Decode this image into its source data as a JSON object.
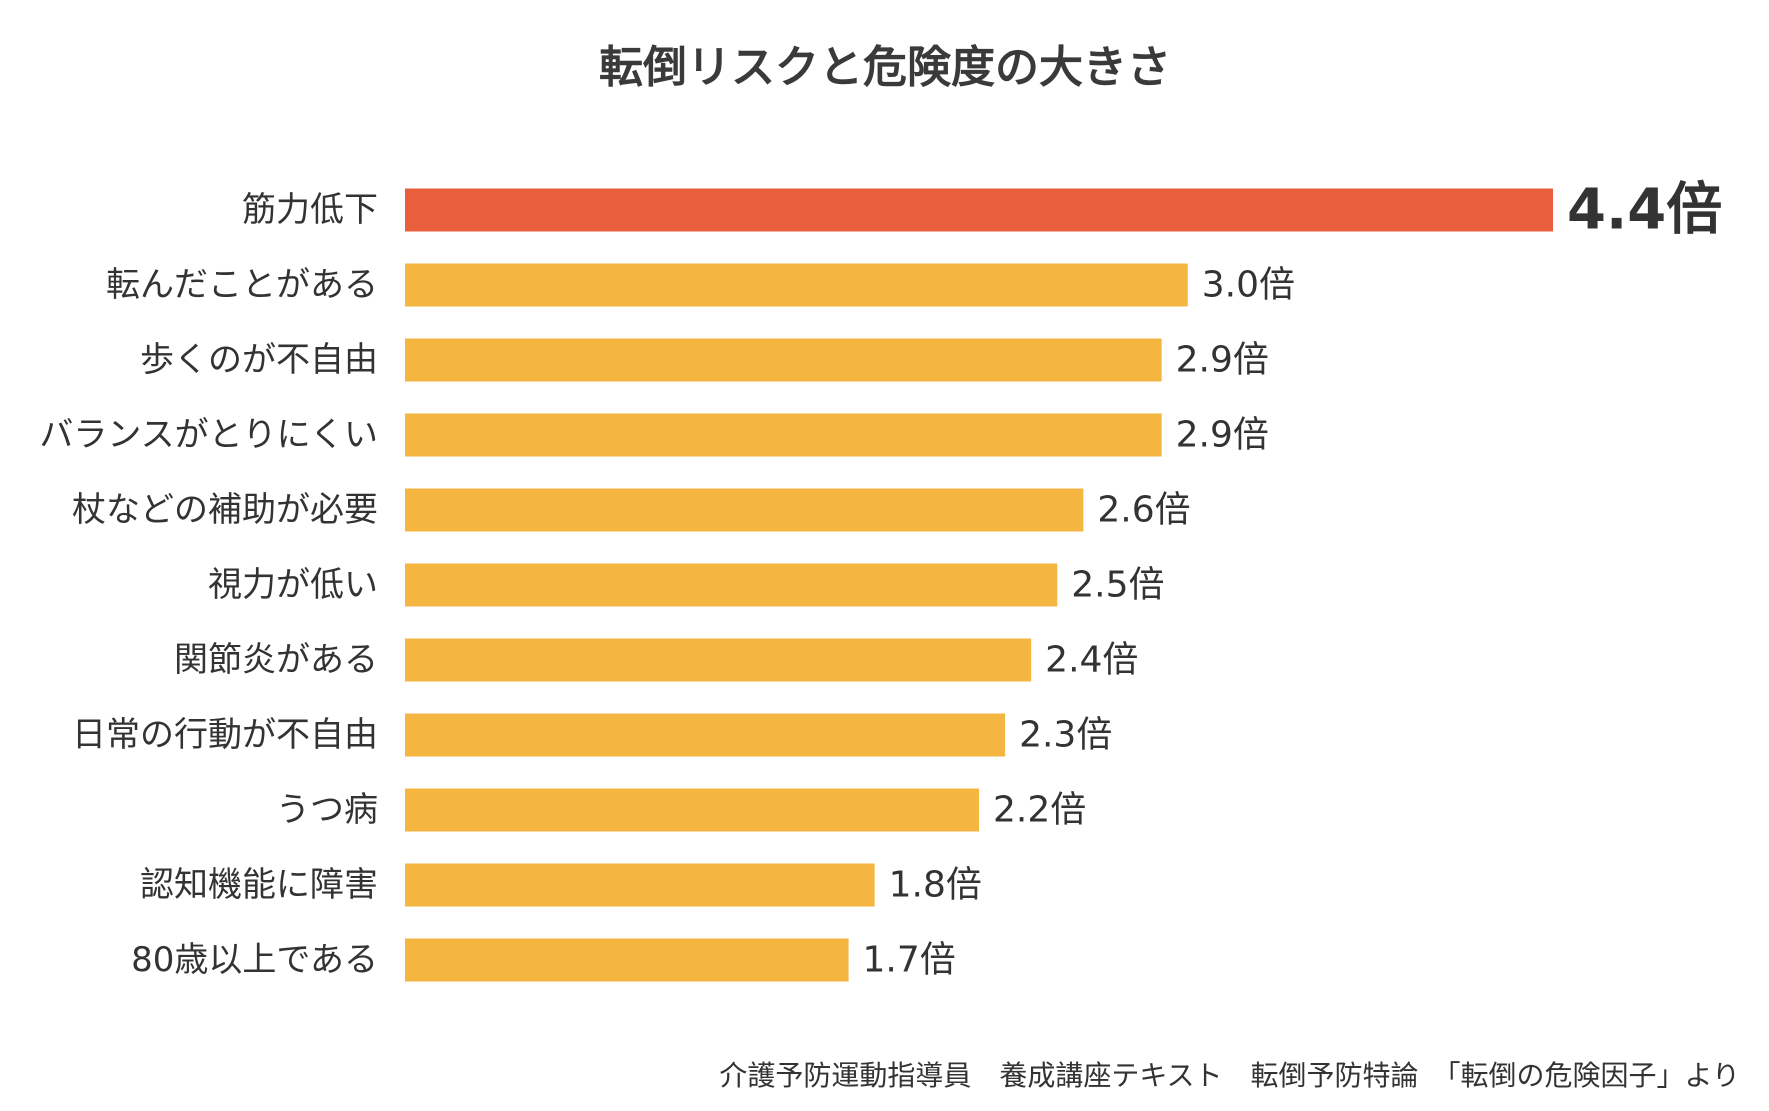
{
  "chart_data": {
    "type": "bar",
    "orientation": "horizontal",
    "title": "転倒リスクと危険度の大きさ",
    "value_suffix": "倍",
    "xlim": [
      0,
      4.4
    ],
    "grid": false,
    "categories": [
      "筋力低下",
      "転んだことがある",
      "歩くのが不自由",
      "バランスがとりにくい",
      "杖などの補助が必要",
      "視力が低い",
      "関節炎がある",
      "日常の行動が不自由",
      "うつ病",
      "認知機能に障害",
      "80歳以上である"
    ],
    "values": [
      4.4,
      3.0,
      2.9,
      2.9,
      2.6,
      2.5,
      2.4,
      2.3,
      2.2,
      1.8,
      1.7
    ],
    "value_labels": [
      "4.4倍",
      "3.0倍",
      "2.9倍",
      "2.9倍",
      "2.6倍",
      "2.5倍",
      "2.4倍",
      "2.3倍",
      "2.2倍",
      "1.8倍",
      "1.7倍"
    ],
    "highlight_index": 0,
    "colors": {
      "highlight": "#e95f3d",
      "default": "#f4b541",
      "text": "#333333",
      "title": "#3a3a3a"
    }
  },
  "source_note": "介護予防運動指導員　養成講座テキスト　転倒予防特論　「転倒の危険因子」より"
}
